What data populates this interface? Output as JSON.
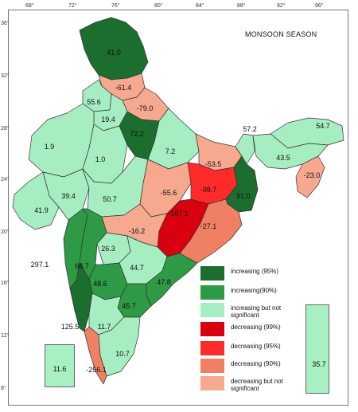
{
  "title": "MONSOON SEASON",
  "colors": {
    "increasing_95": "#1b6e2d",
    "increasing_90": "#2e9a45",
    "increasing_ns": "#a6eec2",
    "decreasing_99": "#d80010",
    "decreasing_95": "#ff2a2a",
    "decreasing_90": "#f08064",
    "decreasing_ns": "#f6a98e",
    "sea": "#ffffff",
    "boundary": "#333333"
  },
  "longitude_ticks": [
    "68°",
    "72°",
    "76°",
    "80°",
    "84°",
    "88°",
    "92°",
    "96°"
  ],
  "latitude_ticks": [
    "36°",
    "32°",
    "28°",
    "24°",
    "20°",
    "16°",
    "12°",
    "8°"
  ],
  "region_values": {
    "jammu_kashmir": "41.0",
    "himachal": "-61.4",
    "punjab": "55.6",
    "uttarakhand": "-79.0",
    "haryana": "19.4",
    "west_up": "72.2",
    "west_rajasthan": "1.9",
    "east_rajasthan": "1.0",
    "east_up": "7.2",
    "sub_himalayan": "57.2",
    "arunachal": "54.7",
    "assam": "43.5",
    "bihar": "-53.5",
    "gujarat": "39.4",
    "saurashtra": "41.9",
    "west_mp": "50.7",
    "east_mp": "-55.6",
    "jharkhand": "-98.7",
    "gangetic_wb": "91.0",
    "nmmt": "-23.0",
    "chhattisgarh": "-167.1",
    "vidarbha": "-16.2",
    "odisha": "-27.1",
    "marathwada": "26.3",
    "konkan": "297.1",
    "madhya_maharashtra": "68.7",
    "telangana": "44.7",
    "coastal_ap": "47.8",
    "n_karnataka": "48.6",
    "rayalaseema": "45.7",
    "coastal_karnataka": "125.5",
    "s_karnataka": "11.7",
    "tamil_nadu": "10.7",
    "kerala": "-256.1",
    "lakshadweep": "11.6",
    "andaman": "35.7"
  },
  "legend": [
    {
      "label": "increasing (95%)",
      "color": "#1b6e2d"
    },
    {
      "label": "increasing(90%)",
      "color": "#2e9a45"
    },
    {
      "label": "increasing but not significant",
      "color": "#a6eec2"
    },
    {
      "label": "decreasing (99%)",
      "color": "#d80010"
    },
    {
      "label": "decreasing (95%)",
      "color": "#ff2a2a"
    },
    {
      "label": "decreasing (90%)",
      "color": "#f08064"
    },
    {
      "label": "decreasing but not significant",
      "color": "#f6a98e"
    }
  ]
}
